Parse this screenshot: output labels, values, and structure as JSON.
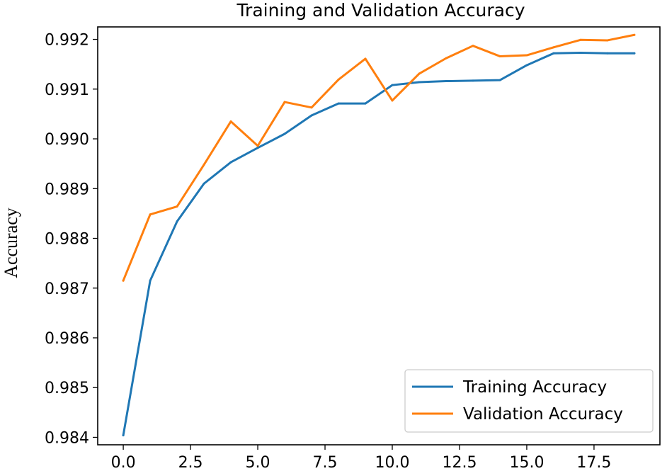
{
  "chart_data": {
    "type": "line",
    "title": "Training and Validation Accuracy",
    "xlabel": "",
    "ylabel": "Accuracy",
    "xlim": [
      -0.95,
      19.95
    ],
    "ylim": [
      0.98385,
      0.99225
    ],
    "x_ticks": [
      0.0,
      2.5,
      5.0,
      7.5,
      10.0,
      12.5,
      15.0,
      17.5
    ],
    "x_tick_labels": [
      "0.0",
      "2.5",
      "5.0",
      "7.5",
      "10.0",
      "12.5",
      "15.0",
      "17.5"
    ],
    "y_ticks": [
      0.984,
      0.985,
      0.986,
      0.987,
      0.988,
      0.989,
      0.99,
      0.991,
      0.992
    ],
    "y_tick_labels": [
      "0.984",
      "0.985",
      "0.986",
      "0.987",
      "0.988",
      "0.989",
      "0.990",
      "0.991",
      "0.992"
    ],
    "grid": false,
    "legend_position": "lower-right",
    "x": [
      0,
      1,
      2,
      3,
      4,
      5,
      6,
      7,
      8,
      9,
      10,
      11,
      12,
      13,
      14,
      15,
      16,
      17,
      18,
      19
    ],
    "series": [
      {
        "name": "Training Accuracy",
        "color": "#1f77b4",
        "values": [
          0.98404,
          0.98715,
          0.98834,
          0.9891,
          0.98953,
          0.98982,
          0.9901,
          0.99047,
          0.99071,
          0.99071,
          0.99108,
          0.99114,
          0.99116,
          0.99117,
          0.99118,
          0.99148,
          0.99172,
          0.99173,
          0.99172,
          0.99172
        ]
      },
      {
        "name": "Validation Accuracy",
        "color": "#ff7f0e",
        "values": [
          0.98715,
          0.98848,
          0.98864,
          0.98948,
          0.99035,
          0.98986,
          0.99074,
          0.99063,
          0.99119,
          0.99161,
          0.99077,
          0.99131,
          0.99162,
          0.99187,
          0.99166,
          0.99168,
          0.99184,
          0.99199,
          0.99198,
          0.99209
        ]
      }
    ]
  }
}
